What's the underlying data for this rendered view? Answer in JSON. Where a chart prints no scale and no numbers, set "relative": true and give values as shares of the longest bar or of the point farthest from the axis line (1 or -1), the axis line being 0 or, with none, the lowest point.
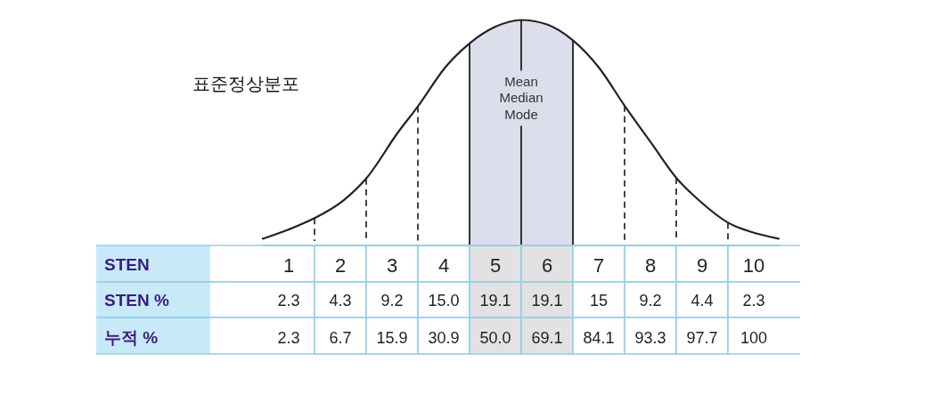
{
  "chart_data": [
    {
      "type": "line",
      "title": "표준정상분포",
      "relative": true,
      "color": "#222222",
      "x": [
        0.5,
        0.99,
        1.49,
        2.06,
        2.51,
        3.11,
        3.51,
        4.03,
        4.52,
        5,
        5.5,
        6,
        6.5,
        7,
        7.5,
        8.03,
        8.5,
        8.94,
        9.51,
        9.95,
        10.48
      ],
      "values": [
        0.03,
        0.07,
        0.12,
        0.2,
        0.3,
        0.5,
        0.62,
        0.79,
        0.9,
        0.97,
        1,
        0.98,
        0.91,
        0.79,
        0.62,
        0.45,
        0.3,
        0.2,
        0.1,
        0.06,
        0.03
      ],
      "xlim": [
        0.5,
        10.5
      ],
      "xticks": [
        1,
        2,
        3,
        4,
        5,
        6,
        7,
        8,
        9,
        10
      ],
      "ref_lines": [
        {
          "axis": "x",
          "value": 1.5,
          "line_style": "dashed"
        },
        {
          "axis": "x",
          "value": 2.5,
          "line_style": "dashed"
        },
        {
          "axis": "x",
          "value": 3.5,
          "line_style": "dashed"
        },
        {
          "axis": "x",
          "value": 4.5,
          "line_style": "solid"
        },
        {
          "axis": "x",
          "value": 5.5,
          "label": "Mean\nMedian\nMode",
          "line_style": "solid"
        },
        {
          "axis": "x",
          "value": 6.5,
          "line_style": "solid"
        },
        {
          "axis": "x",
          "value": 7.5,
          "line_style": "dashed"
        },
        {
          "axis": "x",
          "value": 8.5,
          "line_style": "dashed"
        },
        {
          "axis": "x",
          "value": 9.5,
          "line_style": "dashed"
        }
      ],
      "bands": [
        {
          "axis": "x",
          "from": 4.5,
          "to": 6.5,
          "color": "#dcdfeb"
        }
      ]
    },
    {
      "type": "heatmap",
      "xlabel": "STEN",
      "categories": [
        null,
        null,
        null,
        null,
        null,
        null,
        null,
        null,
        null,
        null
      ],
      "y_categories": [
        "STEN %",
        "누적 %"
      ],
      "cells": [
        [
          2.3,
          4.3,
          9.2,
          15.0,
          19.1,
          19.1,
          15,
          9.2,
          4.4,
          2.3
        ],
        [
          2.3,
          6.7,
          15.9,
          30.9,
          50.0,
          69.1,
          84.1,
          93.3,
          97.7,
          100
        ]
      ],
      "cell_labels": [
        [
          "2.3",
          "4.3",
          "9.2",
          "15.0",
          "19.1",
          "19.1",
          "15",
          "9.2",
          "4.4",
          "2.3"
        ],
        [
          "2.3",
          "6.7",
          "15.9",
          "30.9",
          "50.0",
          "69.1",
          "84.1",
          "93.3",
          "97.7",
          "100"
        ]
      ]
    }
  ]
}
